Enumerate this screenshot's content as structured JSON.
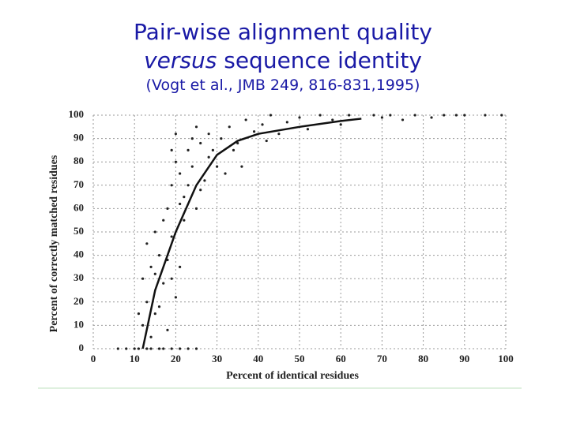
{
  "chart_data": {
    "type": "scatter",
    "title": [
      "Pair-wise alignment quality",
      "versus",
      "sequence identity"
    ],
    "subtitle": "(Vogt et al., JMB 249, 816-831,1995)",
    "x_label": "Percent of identical residues",
    "y_label": "Percent of correctly matched residues",
    "xlim": [
      0,
      100
    ],
    "ylim": [
      0,
      100
    ],
    "xticks": [
      0,
      10,
      20,
      30,
      40,
      50,
      60,
      70,
      80,
      90,
      100
    ],
    "yticks": [
      0,
      10,
      20,
      30,
      40,
      50,
      60,
      70,
      80,
      90,
      100
    ],
    "grid": true,
    "series": [
      {
        "type": "scatter",
        "color": "#222222",
        "x": [
          6,
          8,
          10,
          11,
          13,
          14,
          16,
          17,
          19,
          21,
          23,
          25,
          12,
          13,
          14,
          15,
          16,
          17,
          18,
          13,
          15,
          17,
          19,
          20,
          14,
          16,
          18,
          12,
          21,
          11,
          19,
          15,
          18,
          19,
          20,
          21,
          22,
          23,
          24,
          25,
          26,
          27,
          28,
          20,
          22,
          24,
          26,
          29,
          30,
          19,
          21,
          25,
          23,
          28,
          31,
          33,
          35,
          37,
          39,
          41,
          43,
          45,
          47,
          50,
          52,
          55,
          58,
          60,
          34,
          36,
          42,
          32,
          62,
          68,
          72,
          78,
          85,
          90,
          95,
          99,
          70,
          82,
          88,
          75
        ],
        "values": [
          0,
          0,
          0,
          0,
          0,
          0,
          0,
          0,
          0,
          0,
          0,
          0,
          10,
          20,
          35,
          15,
          40,
          28,
          8,
          45,
          50,
          55,
          30,
          22,
          5,
          18,
          38,
          30,
          35,
          15,
          48,
          32,
          60,
          70,
          80,
          75,
          65,
          85,
          78,
          60,
          88,
          72,
          82,
          92,
          55,
          90,
          68,
          85,
          78,
          85,
          62,
          95,
          70,
          92,
          90,
          95,
          88,
          98,
          93,
          96,
          100,
          92,
          97,
          99,
          94,
          100,
          98,
          96,
          85,
          78,
          89,
          75,
          100,
          100,
          100,
          100,
          100,
          100,
          100,
          100,
          99,
          99,
          100,
          98
        ]
      },
      {
        "type": "line",
        "color": "#111111",
        "x": [
          12,
          15,
          20,
          25,
          30,
          35,
          40,
          50,
          60,
          65
        ],
        "values": [
          0,
          25,
          50,
          70,
          83,
          89,
          92,
          95,
          97.5,
          98.5
        ]
      }
    ]
  }
}
